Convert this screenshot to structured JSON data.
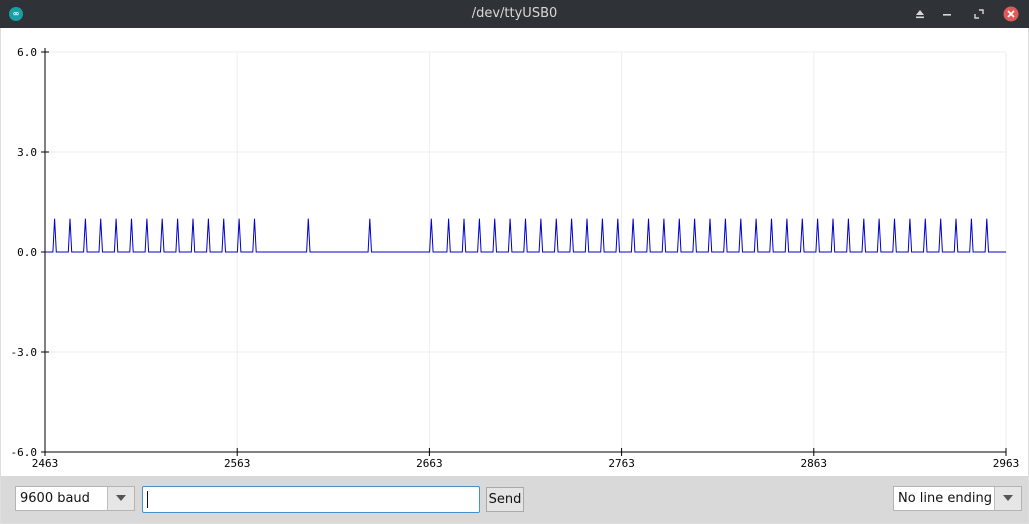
{
  "window": {
    "title": "/dev/ttyUSB0",
    "app_icon": "infinity-icon"
  },
  "title_buttons": [
    "eject-icon",
    "minimize-icon",
    "maximize-icon",
    "close-icon"
  ],
  "colors": {
    "titlebar": "#2f3237",
    "close": "#e05a5a",
    "series": "#0000cc",
    "grid": "#eeeeee"
  },
  "chart_data": {
    "type": "line",
    "title": "",
    "xlabel": "",
    "ylabel": "",
    "xlim": [
      2463,
      2963
    ],
    "ylim": [
      -6.0,
      6.0
    ],
    "x_ticks": [
      "2463",
      "2563",
      "2663",
      "2763",
      "2863",
      "2963"
    ],
    "y_ticks": [
      "6.0",
      "3.0",
      "0.0",
      "-3.0",
      "-6.0"
    ],
    "grid": true,
    "series": [
      {
        "baseline": 0,
        "pulse_height": 1,
        "pulse_positions": [
          2468,
          2476,
          2484,
          2492,
          2500,
          2508,
          2516,
          2524,
          2532,
          2540,
          2548,
          2556,
          2564,
          2572,
          2600,
          2632,
          2664,
          2673,
          2681,
          2689,
          2697,
          2705,
          2713,
          2721,
          2729,
          2737,
          2745,
          2753,
          2761,
          2769,
          2777,
          2785,
          2793,
          2801,
          2809,
          2817,
          2825,
          2833,
          2841,
          2849,
          2857,
          2865,
          2873,
          2881,
          2889,
          2897,
          2905,
          2913,
          2921,
          2929,
          2937,
          2945,
          2953
        ]
      }
    ]
  },
  "bottom": {
    "baud": "9600 baud",
    "input_value": "",
    "send_label": "Send",
    "line_ending": "No line ending"
  }
}
